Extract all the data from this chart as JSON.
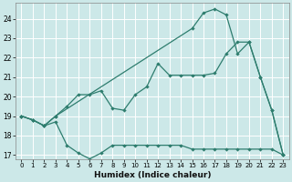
{
  "xlabel": "Humidex (Indice chaleur)",
  "bg_color": "#cce8e8",
  "line_color": "#2e7d6e",
  "ylim": [
    16.8,
    24.8
  ],
  "xlim": [
    -0.5,
    23.5
  ],
  "yticks": [
    17,
    18,
    19,
    20,
    21,
    22,
    23,
    24
  ],
  "xticks": [
    0,
    1,
    2,
    3,
    4,
    5,
    6,
    7,
    8,
    9,
    10,
    11,
    12,
    13,
    14,
    15,
    16,
    17,
    18,
    19,
    20,
    21,
    22,
    23
  ],
  "line_upper_x": [
    0,
    1,
    2,
    3,
    15,
    16,
    17,
    18,
    19,
    20,
    21,
    22,
    23
  ],
  "line_upper_y": [
    19.0,
    18.8,
    18.5,
    19.0,
    23.5,
    24.3,
    24.5,
    24.2,
    22.2,
    22.8,
    21.0,
    19.3,
    17.0
  ],
  "line_mid_x": [
    0,
    1,
    2,
    3,
    4,
    5,
    6,
    7,
    8,
    9,
    10,
    11,
    12,
    13,
    14,
    15,
    16,
    17,
    18,
    19,
    20,
    21,
    22,
    23
  ],
  "line_mid_y": [
    19.0,
    18.8,
    18.5,
    19.0,
    19.5,
    20.1,
    20.1,
    20.3,
    19.4,
    19.3,
    20.1,
    20.5,
    21.7,
    21.1,
    21.1,
    21.1,
    21.1,
    21.2,
    22.2,
    22.8,
    22.8,
    21.0,
    19.3,
    17.0
  ],
  "line_low_x": [
    0,
    1,
    2,
    3,
    4,
    5,
    6,
    7,
    8,
    9,
    10,
    11,
    12,
    13,
    14,
    15,
    16,
    17,
    18,
    19,
    20,
    21,
    22,
    23
  ],
  "line_low_y": [
    19.0,
    18.8,
    18.5,
    18.7,
    17.5,
    17.1,
    16.8,
    17.1,
    17.5,
    17.5,
    17.5,
    17.5,
    17.5,
    17.5,
    17.5,
    17.3,
    17.3,
    17.3,
    17.3,
    17.3,
    17.3,
    17.3,
    17.3,
    17.0
  ]
}
